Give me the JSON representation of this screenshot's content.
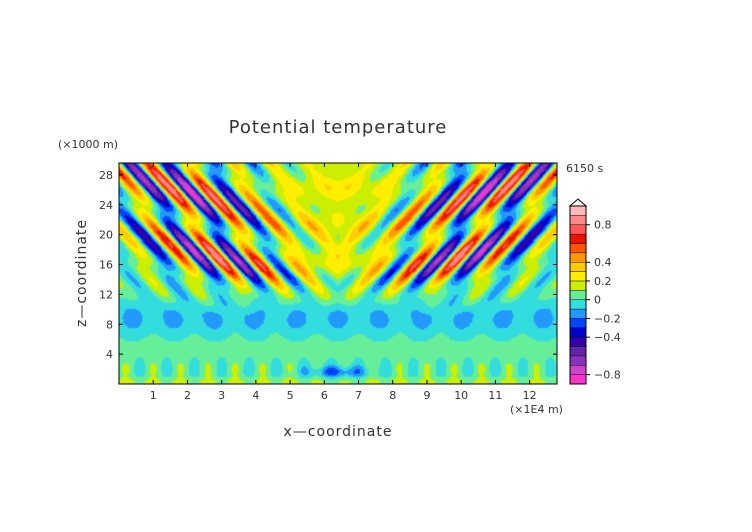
{
  "chart_data": {
    "type": "heatmap",
    "title": "Potential temperature",
    "time_label": "6150 s",
    "xlabel": "x—coordinate",
    "ylabel": "z—coordinate",
    "x_unit": "(×1E4 m)",
    "y_unit": "(×1000 m)",
    "xlim": [
      0,
      12.8
    ],
    "ylim": [
      0,
      29.6
    ],
    "x_ticks": [
      1,
      2,
      3,
      4,
      5,
      6,
      7,
      8,
      9,
      10,
      11,
      12
    ],
    "y_ticks": [
      4,
      8,
      12,
      16,
      20,
      24,
      28
    ],
    "colorbar": {
      "range": [
        -0.9,
        1.0
      ],
      "levels": [
        -0.9,
        -0.8,
        -0.7,
        -0.6,
        -0.5,
        -0.4,
        -0.3,
        -0.2,
        -0.1,
        0,
        0.1,
        0.2,
        0.3,
        0.4,
        0.5,
        0.6,
        0.7,
        0.8,
        0.9,
        1.0
      ],
      "colors": [
        "#ff33cc",
        "#cc44cc",
        "#8833bb",
        "#6622aa",
        "#3300aa",
        "#0000cc",
        "#0044ff",
        "#2299ff",
        "#33dddd",
        "#66ee99",
        "#ccee00",
        "#ffee00",
        "#ffcc00",
        "#ff9900",
        "#ff5500",
        "#ee1100",
        "#ff5555",
        "#ff8888",
        "#ffbbbb"
      ],
      "tick_values": [
        -0.8,
        -0.4,
        -0.2,
        0,
        0.2,
        0.4,
        0.8
      ],
      "tick_labels": [
        "−0.8",
        "−0.4",
        "−0.2",
        "0",
        "0.2",
        "0.4",
        "0.8"
      ]
    }
  }
}
